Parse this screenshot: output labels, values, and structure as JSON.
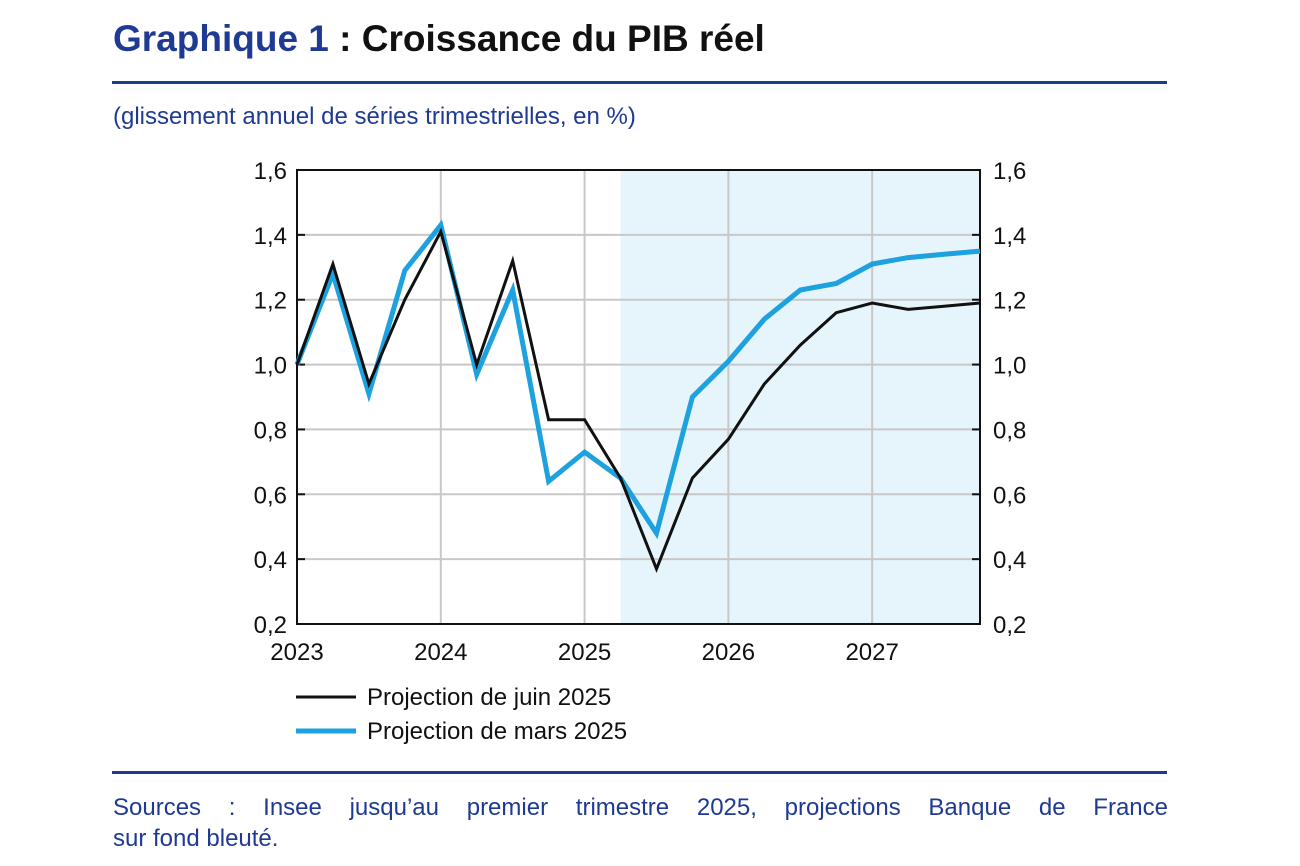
{
  "header": {
    "title_number": "Graphique 1",
    "title_separator": " : ",
    "title_text": "Croissance du PIB réel",
    "subtitle": "(glissement annuel de séries trimestrielles, en %)"
  },
  "footer": {
    "sources_line1": "Sources : Insee jusqu’au premier trimestre 2025, projections Banque de France",
    "sources_line2": "sur fond bleuté."
  },
  "colors": {
    "brand": "#1f3a93",
    "june": "#111111",
    "march": "#1da1df",
    "projection_band": "#e6f4fb",
    "grid": "#c8c8c8"
  },
  "chart_data": {
    "type": "line",
    "title": "Croissance du PIB réel",
    "ylabel": "glissement annuel de séries trimestrielles, en %",
    "ylim": [
      0.2,
      1.6
    ],
    "yticks": [
      0.2,
      0.4,
      0.6,
      0.8,
      1.0,
      1.2,
      1.4,
      1.6
    ],
    "ytick_labels": [
      "0,2",
      "0,4",
      "0,6",
      "0,8",
      "1,0",
      "1,2",
      "1,4",
      "1,6"
    ],
    "xlim": [
      2023.0,
      2027.75
    ],
    "xticks": [
      2023,
      2024,
      2025,
      2026,
      2027
    ],
    "xtick_labels": [
      "2023",
      "2024",
      "2025",
      "2026",
      "2027"
    ],
    "projection_start": 2025.25,
    "x": [
      2023.0,
      2023.25,
      2023.5,
      2023.75,
      2024.0,
      2024.25,
      2024.5,
      2024.75,
      2025.0,
      2025.25,
      2025.5,
      2025.75,
      2026.0,
      2026.25,
      2026.5,
      2026.75,
      2027.0,
      2027.25,
      2027.5,
      2027.75
    ],
    "series": [
      {
        "name": "Projection de juin 2025",
        "color": "#111111",
        "values": [
          1.0,
          1.31,
          0.94,
          1.2,
          1.41,
          1.0,
          1.32,
          0.83,
          0.83,
          0.65,
          0.37,
          0.65,
          0.77,
          0.94,
          1.06,
          1.16,
          1.19,
          1.17,
          1.18,
          1.19
        ]
      },
      {
        "name": "Projection de mars 2025",
        "color": "#1da1df",
        "values": [
          1.0,
          1.28,
          0.91,
          1.29,
          1.43,
          0.97,
          1.23,
          0.64,
          0.73,
          0.65,
          0.48,
          0.9,
          1.01,
          1.14,
          1.23,
          1.25,
          1.31,
          1.33,
          1.34,
          1.35
        ]
      }
    ],
    "grid": true,
    "legend_position": "bottom-left"
  }
}
